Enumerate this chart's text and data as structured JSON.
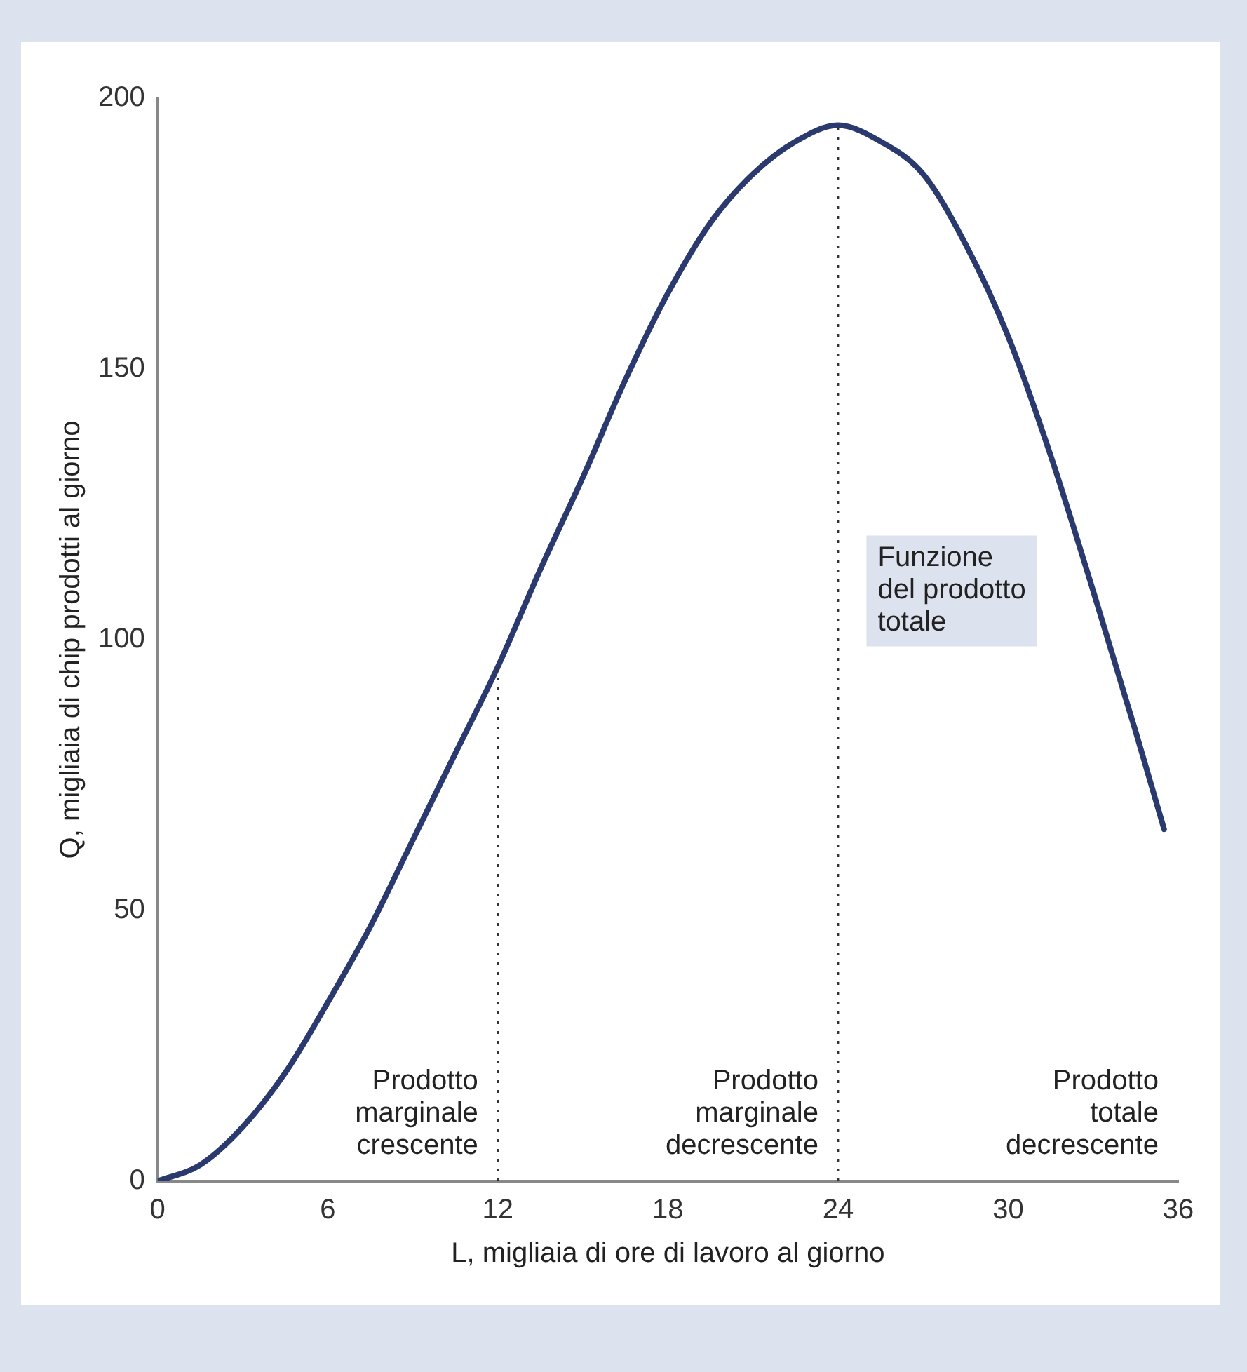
{
  "chart_data": {
    "type": "line",
    "xlabel": "L, migliaia di ore di lavoro al giorno",
    "ylabel": "Q, migliaia di chip prodotti al giorno",
    "x": [
      0,
      1.5,
      3,
      4.5,
      6,
      7.5,
      9,
      10.5,
      12,
      13.5,
      15,
      16.5,
      18,
      19.5,
      21,
      22.5,
      24,
      25.5,
      27,
      28.5,
      30,
      31.5,
      33,
      34.5,
      35.5
    ],
    "series": [
      {
        "color": "#2b3a6e",
        "values": [
          0,
          3,
          10,
          20,
          33,
          47,
          63,
          79,
          95,
          113,
          130,
          148,
          164,
          177,
          186,
          192,
          195,
          192,
          186,
          173,
          156,
          134,
          109,
          83,
          65
        ]
      }
    ],
    "xlim": [
      0,
      36
    ],
    "xticks": [
      0,
      6,
      12,
      18,
      24,
      30,
      36
    ],
    "ylim": [
      0,
      200
    ],
    "yticks": [
      0,
      50,
      100,
      150,
      200
    ],
    "grid": false,
    "legend": false,
    "marker": "none",
    "line_style": "solid",
    "ref_lines": [
      {
        "axis": "x",
        "value": 12,
        "line_style": "dotted",
        "color": "#333333"
      },
      {
        "axis": "x",
        "value": 24,
        "line_style": "dotted",
        "color": "#333333"
      }
    ],
    "annotations": [
      "Prodotto\nmarginale\ncrescente",
      "Prodotto\nmarginale\ndecrescente",
      "Prodotto\ntotale\ndecrescente",
      {
        "text": "Funzione\ndel prodotto\ntotale",
        "x": 33,
        "y": 109
      }
    ]
  }
}
